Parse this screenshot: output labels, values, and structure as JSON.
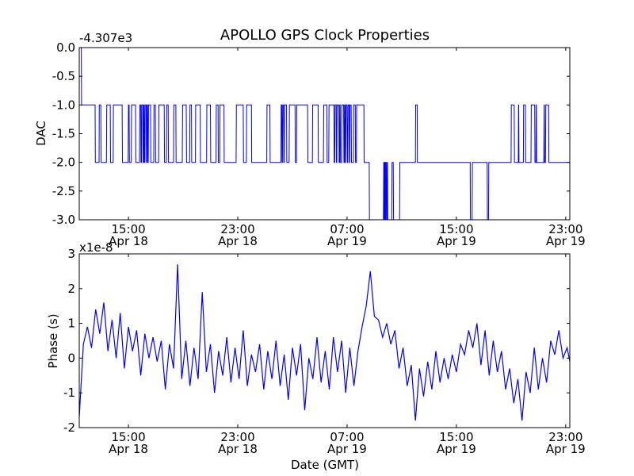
{
  "chart_data": [
    {
      "type": "line",
      "id": "dac",
      "title": "APOLLO GPS Clock Properties",
      "ylabel": "DAC",
      "xlabel": "",
      "offset_text": "-4.307e3",
      "xlim": [
        11.4,
        47.3
      ],
      "ylim": [
        -3.0,
        0.0
      ],
      "x_units": "hours since Apr 18 00:00 GMT",
      "yticks": [
        0.0,
        -0.5,
        -1.0,
        -1.5,
        -2.0,
        -2.5,
        -3.0
      ],
      "ytick_labels": [
        "0.0",
        "-0.5",
        "-1.0",
        "-1.5",
        "-2.0",
        "-2.5",
        "-3.0"
      ],
      "xticks": [
        15,
        23,
        31,
        39,
        47
      ],
      "xtick_labels": [
        [
          "15:00",
          "Apr 18"
        ],
        [
          "23:00",
          "Apr 18"
        ],
        [
          "07:00",
          "Apr 19"
        ],
        [
          "15:00",
          "Apr 19"
        ],
        [
          "23:00",
          "Apr 19"
        ]
      ],
      "series_color": "#0000ff",
      "base_level": -2.0,
      "initial": {
        "value": 0.0,
        "until": 11.57
      },
      "level_minus1_intervals": [
        [
          11.57,
          12.56
        ],
        [
          12.85,
          12.98
        ],
        [
          13.39,
          13.67
        ],
        [
          13.88,
          14.54
        ],
        [
          14.98,
          15.05
        ],
        [
          15.21,
          15.52
        ],
        [
          15.81,
          15.9
        ],
        [
          15.95,
          16.05
        ],
        [
          16.1,
          16.15
        ],
        [
          16.2,
          16.3
        ],
        [
          16.35,
          16.4
        ],
        [
          16.45,
          16.62
        ],
        [
          16.85,
          16.97
        ],
        [
          17.21,
          17.62
        ],
        [
          17.78,
          17.91
        ],
        [
          18.3,
          18.47
        ],
        [
          18.94,
          19.23
        ],
        [
          19.48,
          19.61
        ],
        [
          19.9,
          20.25
        ],
        [
          20.72,
          21.0
        ],
        [
          21.41,
          21.56
        ],
        [
          21.68,
          21.99
        ],
        [
          22.88,
          23.4
        ],
        [
          23.63,
          24.0
        ],
        [
          25.12,
          25.35
        ],
        [
          26.16,
          26.22
        ],
        [
          26.27,
          26.35
        ],
        [
          26.4,
          26.57
        ],
        [
          26.76,
          27.19
        ],
        [
          27.3,
          28.11
        ],
        [
          28.46,
          28.88
        ],
        [
          29.27,
          29.52
        ],
        [
          29.66,
          30.04
        ],
        [
          30.1,
          30.2
        ],
        [
          30.25,
          30.4
        ],
        [
          30.45,
          30.5
        ],
        [
          30.6,
          30.75
        ],
        [
          30.8,
          30.85
        ],
        [
          30.9,
          31.0
        ],
        [
          31.05,
          31.15
        ],
        [
          31.2,
          31.3
        ],
        [
          31.46,
          31.6
        ],
        [
          31.68,
          32.23
        ],
        [
          36.0,
          36.13
        ],
        [
          43.0,
          43.23
        ],
        [
          43.53,
          43.56
        ],
        [
          43.9,
          44.05
        ],
        [
          44.46,
          44.73
        ],
        [
          44.82,
          44.85
        ],
        [
          45.4,
          45.43
        ],
        [
          45.52,
          45.75
        ]
      ],
      "level_minus3_intervals": [
        [
          32.62,
          33.66
        ],
        [
          33.7,
          33.74
        ],
        [
          33.78,
          33.82
        ],
        [
          33.87,
          33.92
        ],
        [
          33.96,
          34.27
        ],
        [
          34.38,
          34.84
        ],
        [
          40.01,
          40.15
        ],
        [
          41.25,
          41.35
        ]
      ]
    },
    {
      "type": "line",
      "id": "phase",
      "title": "",
      "ylabel": "Phase (s)",
      "xlabel": "Date (GMT)",
      "offset_text": "x1e-8",
      "xlim": [
        11.4,
        47.3
      ],
      "ylim": [
        -2,
        3
      ],
      "x_units": "hours since Apr 18 00:00 GMT",
      "yticks": [
        3,
        2,
        1,
        0,
        -1,
        -2
      ],
      "ytick_labels": [
        "3",
        "2",
        "1",
        "0",
        "-1",
        "-2"
      ],
      "xticks": [
        15,
        23,
        31,
        39,
        47
      ],
      "xtick_labels": [
        [
          "15:00",
          "Apr 18"
        ],
        [
          "23:00",
          "Apr 18"
        ],
        [
          "07:00",
          "Apr 19"
        ],
        [
          "15:00",
          "Apr 19"
        ],
        [
          "23:00",
          "Apr 19"
        ]
      ],
      "series_color": "#0000ff",
      "x_start": 11.4,
      "x_step": 0.3,
      "values_1e-8": [
        -1.7,
        0.4,
        0.9,
        0.3,
        1.4,
        0.7,
        1.6,
        0.2,
        1.1,
        0.0,
        1.3,
        -0.3,
        0.9,
        0.2,
        0.8,
        -0.5,
        0.7,
        0.0,
        0.6,
        -0.1,
        0.5,
        -0.9,
        0.4,
        -0.3,
        2.7,
        -0.6,
        0.5,
        -0.8,
        0.3,
        -0.6,
        1.9,
        -0.4,
        0.4,
        -1.0,
        0.2,
        -0.5,
        0.6,
        -0.7,
        0.3,
        -0.6,
        0.8,
        -0.8,
        0.1,
        -0.4,
        0.4,
        -0.9,
        0.2,
        -0.6,
        0.5,
        -0.8,
        0.1,
        -1.2,
        0.3,
        -0.5,
        0.4,
        -1.5,
        0.0,
        -0.6,
        0.6,
        -0.7,
        0.2,
        -0.9,
        0.6,
        -0.4,
        0.5,
        -1.0,
        0.3,
        -0.8,
        0.2,
        0.9,
        1.5,
        2.5,
        1.2,
        1.1,
        0.6,
        1.0,
        0.4,
        0.8,
        -0.3,
        0.3,
        -0.8,
        -0.2,
        -1.8,
        -0.3,
        -1.1,
        -0.1,
        -0.9,
        0.2,
        -0.7,
        0.0,
        -0.6,
        0.1,
        -0.4,
        0.4,
        0.1,
        0.8,
        0.3,
        1.0,
        -0.2,
        0.8,
        -0.5,
        0.5,
        -0.4,
        0.2,
        -0.9,
        -0.3,
        -1.3,
        -0.6,
        -1.8,
        -0.4,
        -1.0,
        0.3,
        -0.9,
        0.0,
        -0.7,
        0.5,
        0.1,
        0.8,
        0.0,
        0.3,
        -0.3
      ]
    }
  ]
}
